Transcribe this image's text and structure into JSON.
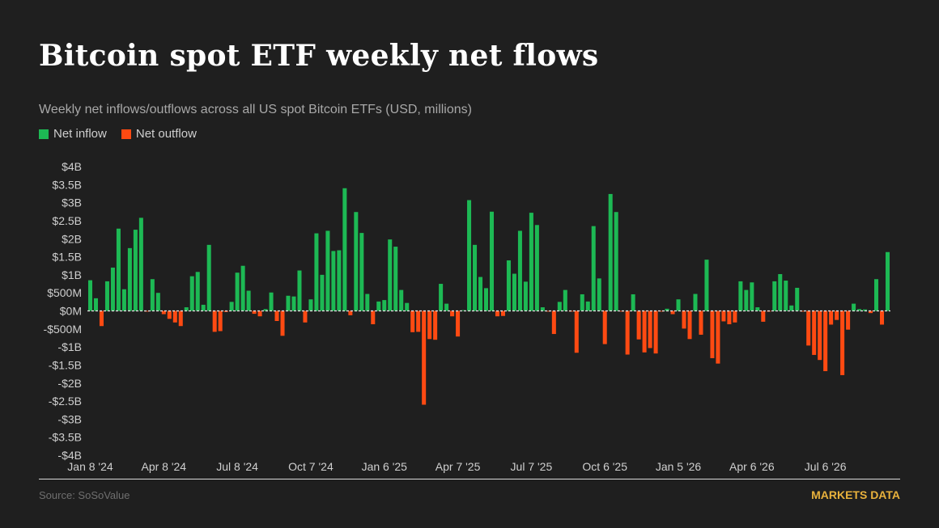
{
  "title": "Bitcoin spot ETF weekly net flows",
  "subtitle": "Weekly net inflows/outflows across all US spot Bitcoin ETFs (USD, millions)",
  "legend": [
    {
      "label": "Net inflow",
      "color": "#1db954"
    },
    {
      "label": "Net outflow",
      "color": "#ff4a12"
    }
  ],
  "footer": {
    "source": "Source: SoSoValue",
    "brand": "MARKETS DATA"
  },
  "colors": {
    "inflow": "#1db954",
    "outflow": "#ff4a12",
    "background": "#1f1f1f",
    "zero_line": "#e6e6e6",
    "brand": "#e8b13c"
  },
  "chart_data": {
    "type": "bar",
    "title": "Bitcoin spot ETF weekly net flows",
    "xlabel": "",
    "ylabel": "",
    "ylim": [
      -4000,
      4000
    ],
    "y_ticks": [
      {
        "value": 4000,
        "label": "$4B"
      },
      {
        "value": 3500,
        "label": "$3.5B"
      },
      {
        "value": 3000,
        "label": "$3B"
      },
      {
        "value": 2500,
        "label": "$2.5B"
      },
      {
        "value": 2000,
        "label": "$2B"
      },
      {
        "value": 1500,
        "label": "$1.5B"
      },
      {
        "value": 1000,
        "label": "$1B"
      },
      {
        "value": 500,
        "label": "$500M"
      },
      {
        "value": 0,
        "label": "$0M"
      },
      {
        "value": -500,
        "label": "-$500M"
      },
      {
        "value": -1000,
        "label": "-$1B"
      },
      {
        "value": -1500,
        "label": "-$1.5B"
      },
      {
        "value": -2000,
        "label": "-$2B"
      },
      {
        "value": -2500,
        "label": "-$2.5B"
      },
      {
        "value": -3000,
        "label": "-$3B"
      },
      {
        "value": -3500,
        "label": "-$3.5B"
      },
      {
        "value": -4000,
        "label": "-$4B"
      }
    ],
    "x_ticks": [
      {
        "week": 0,
        "label": "Jan 8 '24"
      },
      {
        "week": 13,
        "label": "Apr 8 '24"
      },
      {
        "week": 26,
        "label": "Jul 8 '24"
      },
      {
        "week": 39,
        "label": "Oct 7 '24"
      },
      {
        "week": 52,
        "label": "Jan 6 '25"
      },
      {
        "week": 65,
        "label": "Apr 7 '25"
      },
      {
        "week": 78,
        "label": "Jul 7 '25"
      },
      {
        "week": 91,
        "label": "Oct 6 '25"
      },
      {
        "week": 104,
        "label": "Jan 5 '26"
      },
      {
        "week": 117,
        "label": "Apr 6 '26"
      },
      {
        "week": 130,
        "label": "Jul 6 '26"
      }
    ],
    "first_week": "Jan 8 '24",
    "values": [
      850,
      350,
      -420,
      820,
      1200,
      2280,
      600,
      1740,
      2250,
      2580,
      -20,
      880,
      500,
      -90,
      -220,
      -320,
      -420,
      100,
      960,
      1080,
      170,
      1830,
      -580,
      -560,
      -30,
      250,
      1060,
      1250,
      560,
      -80,
      -150,
      50,
      510,
      -280,
      -690,
      420,
      400,
      1120,
      -320,
      320,
      2150,
      1000,
      2220,
      1660,
      1680,
      3400,
      -120,
      2740,
      2160,
      470,
      -370,
      260,
      300,
      1980,
      1780,
      580,
      220,
      -590,
      -580,
      -2600,
      -780,
      -800,
      750,
      200,
      -150,
      -710,
      20,
      3070,
      1830,
      940,
      630,
      2750,
      -150,
      -140,
      1400,
      1030,
      2220,
      810,
      2720,
      2380,
      100,
      -20,
      -640,
      250,
      580,
      -20,
      -1160,
      460,
      260,
      2350,
      900,
      -920,
      3240,
      2740,
      -20,
      -1210,
      460,
      -790,
      -1150,
      -1030,
      -1180,
      -20,
      60,
      -90,
      320,
      -490,
      -780,
      470,
      -660,
      1420,
      -1310,
      -1460,
      -290,
      -370,
      -320,
      820,
      580,
      790,
      100,
      -300,
      -20,
      820,
      1020,
      840,
      150,
      640,
      -20,
      -960,
      -1220,
      -1360,
      -1670,
      -380,
      -250,
      -1780,
      -520,
      200,
      50,
      40,
      -60,
      880,
      -380,
      1630
    ]
  }
}
